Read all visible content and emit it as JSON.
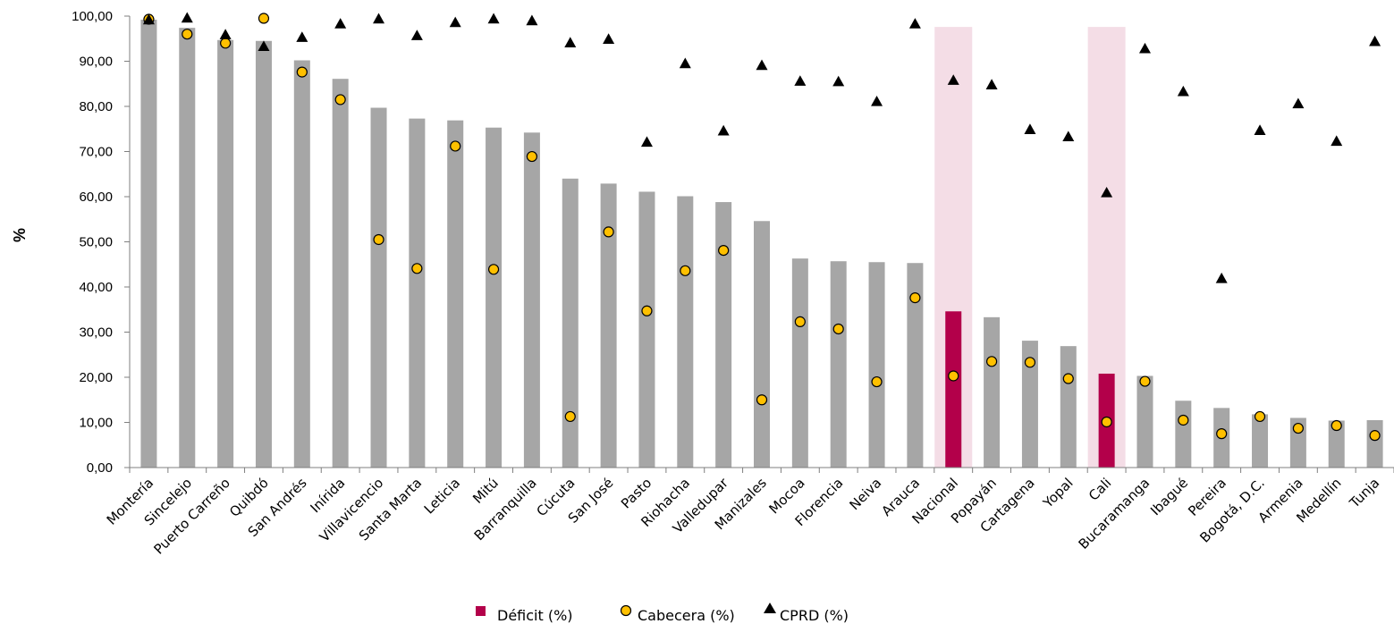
{
  "chart_data": {
    "type": "bar",
    "ylabel": "%",
    "xlabel": "",
    "ylim": [
      0,
      100
    ],
    "yticks": [
      "0,00",
      "10,00",
      "20,00",
      "30,00",
      "40,00",
      "50,00",
      "60,00",
      "70,00",
      "80,00",
      "90,00",
      "100,00"
    ],
    "categories": [
      "Montería",
      "Sincelejo",
      "Puerto Carreño",
      "Quibdó",
      "San Andrés",
      "Inírida",
      "Villavicencio",
      "Santa Marta",
      "Leticia",
      "Mitú",
      "Barranquilla",
      "Cúcuta",
      "San José",
      "Pasto",
      "Riohacha",
      "Valledupar",
      "Manizales",
      "Mocoa",
      "Florencia",
      "Neiva",
      "Arauca",
      "Nacional",
      "Popayán",
      "Cartagena",
      "Yopal",
      "Cali",
      "Bucaramanga",
      "Ibagué",
      "Pereira",
      "Bogotá, D.C.",
      "Armenia",
      "Medellín",
      "Tunja"
    ],
    "highlighted": [
      "Nacional",
      "Cali"
    ],
    "series": [
      {
        "name": "Déficit (%)",
        "marker": "bar",
        "values": [
          99.2,
          97.4,
          94.7,
          94.5,
          90.2,
          86.1,
          79.7,
          77.3,
          76.9,
          75.3,
          74.2,
          64.0,
          62.9,
          61.1,
          60.1,
          58.8,
          54.6,
          46.3,
          45.7,
          45.5,
          45.3,
          34.6,
          33.3,
          28.1,
          26.9,
          20.8,
          20.3,
          14.8,
          13.2,
          11.8,
          11.0,
          10.4,
          10.5
        ]
      },
      {
        "name": "Cabecera (%)",
        "marker": "circle",
        "values": [
          99.3,
          96.0,
          94.0,
          99.5,
          87.6,
          81.5,
          50.5,
          44.1,
          71.2,
          43.9,
          68.9,
          11.3,
          52.2,
          34.7,
          43.6,
          48.1,
          15.0,
          32.3,
          30.7,
          19.0,
          37.6,
          20.3,
          23.5,
          23.3,
          19.7,
          10.1,
          19.1,
          10.5,
          7.5,
          11.3,
          8.7,
          9.3,
          7.1
        ]
      },
      {
        "name": "CPRD (%)",
        "marker": "triangle",
        "values": [
          99.2,
          99.6,
          95.9,
          93.3,
          95.3,
          98.3,
          99.4,
          95.7,
          98.6,
          99.4,
          99.0,
          94.1,
          94.9,
          72.1,
          89.5,
          74.6,
          89.1,
          85.6,
          85.5,
          81.1,
          98.3,
          85.8,
          84.8,
          74.9,
          73.3,
          60.9,
          92.8,
          83.3,
          41.9,
          74.7,
          80.6,
          72.3,
          94.4
        ]
      }
    ],
    "colors": {
      "bar": "#a6a6a6",
      "bar_highlight": "#b3004a",
      "highlight_band": "#f4dde6",
      "circle_fill": "#ffc000",
      "marker_stroke": "#000000",
      "triangle_fill": "#000000"
    },
    "grid": false,
    "legend_position": "bottom-center"
  }
}
